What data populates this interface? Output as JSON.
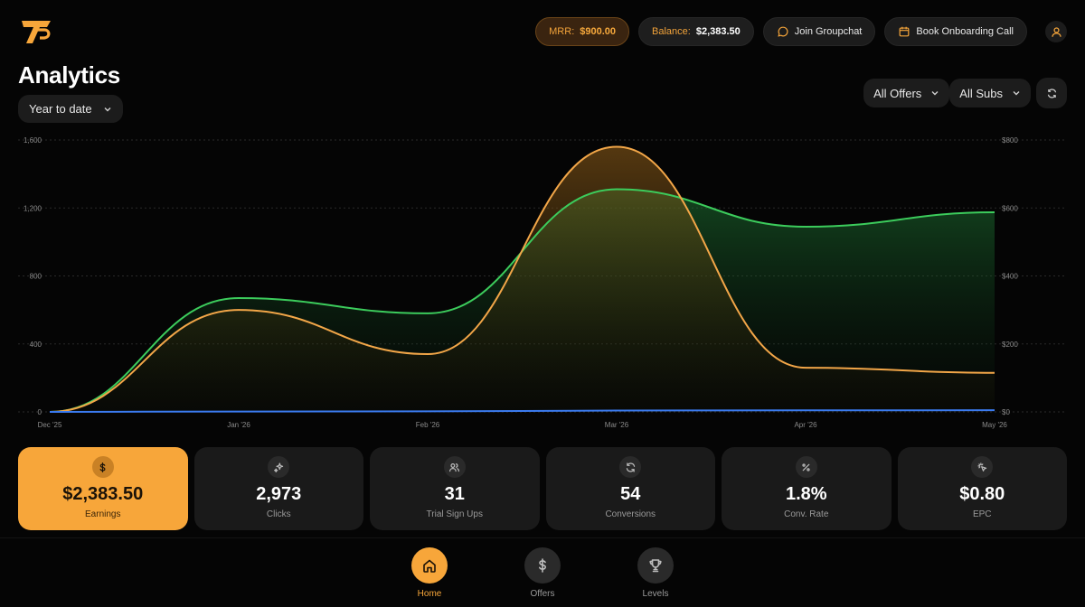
{
  "header": {
    "mrr_label": "MRR:",
    "mrr_value": "$900.00",
    "balance_label": "Balance:",
    "balance_value": "$2,383.50",
    "groupchat_label": "Join Groupchat",
    "onboarding_label": "Book Onboarding Call"
  },
  "page": {
    "title": "Analytics",
    "range": "Year to date"
  },
  "filters": {
    "offers": "All Offers",
    "subs": "All Subs"
  },
  "colors": {
    "accent": "#f7a63a",
    "series_green": "#3ccc5c",
    "series_orange": "#f2a648",
    "series_blue": "#3b7bf0"
  },
  "chart_data": {
    "type": "area",
    "x": [
      "Dec '25",
      "Jan '26",
      "Feb '26",
      "Mar '26",
      "Apr '26",
      "May '26"
    ],
    "y_left_ticks": [
      "0",
      "400",
      "800",
      "1,200",
      "1,600"
    ],
    "y_right_ticks": [
      "$0",
      "$200",
      "$400",
      "$600",
      "$800"
    ],
    "y_left_range": [
      0,
      1600
    ],
    "y_right_range": [
      0,
      800
    ],
    "grid": true,
    "series": [
      {
        "values": [
          0,
          670,
          580,
          1310,
          1090,
          1175
        ],
        "axis": "left"
      },
      {
        "values": [
          0,
          300,
          170,
          780,
          130,
          115
        ],
        "axis": "right"
      },
      {
        "values": [
          0,
          2,
          3,
          8,
          9,
          10
        ],
        "axis": "left"
      }
    ]
  },
  "stats": [
    {
      "value": "$2,383.50",
      "label": "Earnings",
      "icon": "dollar-icon"
    },
    {
      "value": "2,973",
      "label": "Clicks",
      "icon": "sparkle-icon"
    },
    {
      "value": "31",
      "label": "Trial Sign Ups",
      "icon": "users-icon"
    },
    {
      "value": "54",
      "label": "Conversions",
      "icon": "refresh-icon"
    },
    {
      "value": "1.8%",
      "label": "Conv. Rate",
      "icon": "percent-icon"
    },
    {
      "value": "$0.80",
      "label": "EPC",
      "icon": "cursor-click-icon"
    }
  ],
  "nav": [
    {
      "label": "Home",
      "icon": "home-icon",
      "active": true
    },
    {
      "label": "Offers",
      "icon": "dollar-icon",
      "active": false
    },
    {
      "label": "Levels",
      "icon": "trophy-icon",
      "active": false
    }
  ]
}
